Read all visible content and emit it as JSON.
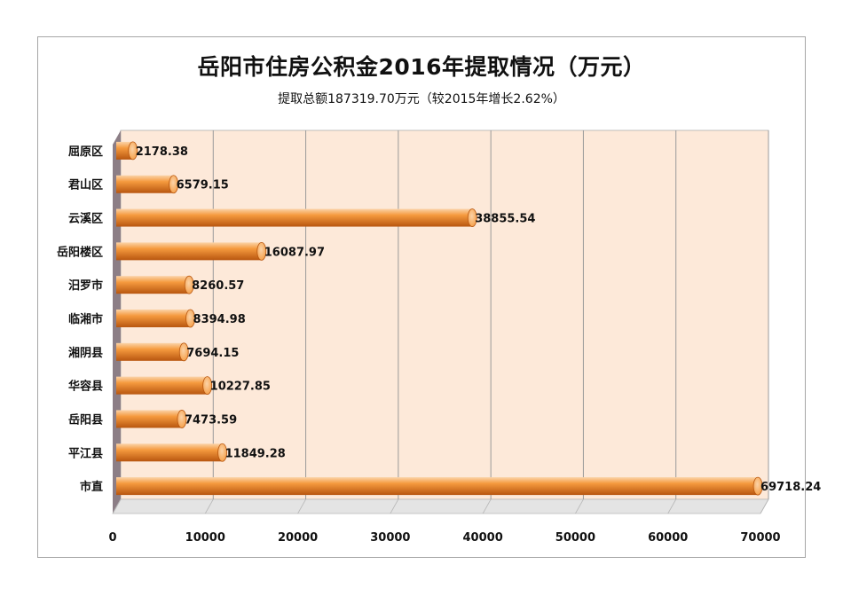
{
  "chart_data": {
    "type": "bar",
    "orientation": "horizontal",
    "title": "岳阳市住房公积金2016年提取情况（万元）",
    "subtitle": "提取总额187319.70万元（较2015年增长2.62%）",
    "categories": [
      "屈原区",
      "君山区",
      "云溪区",
      "岳阳楼区",
      "汨罗市",
      "临湘市",
      "湘阴县",
      "华容县",
      "岳阳县",
      "平江县",
      "市直"
    ],
    "values": [
      2178.38,
      6579.15,
      38855.54,
      16087.97,
      8260.57,
      8394.98,
      7694.15,
      10227.85,
      7473.59,
      11849.28,
      69718.24
    ],
    "value_labels": [
      "2178.38",
      "6579.15",
      "38855.54",
      "16087.97",
      "8260.57",
      "8394.98",
      "7694.15",
      "10227.85",
      "7473.59",
      "11849.28",
      "69718.24"
    ],
    "x_ticks": [
      "0",
      "10000",
      "20000",
      "30000",
      "40000",
      "50000",
      "60000",
      "70000"
    ],
    "xlim": [
      0,
      70000
    ],
    "grid": true,
    "legend": "none",
    "colors": {
      "bar_light": "#fbd3a8",
      "bar_mid": "#f59a3e",
      "bar_dark": "#b8560f",
      "plot_bg": "#fde9d9",
      "side_wall": "#8c7e86",
      "floor": "#e4e4e4",
      "grid": "#9a9a9a"
    }
  }
}
